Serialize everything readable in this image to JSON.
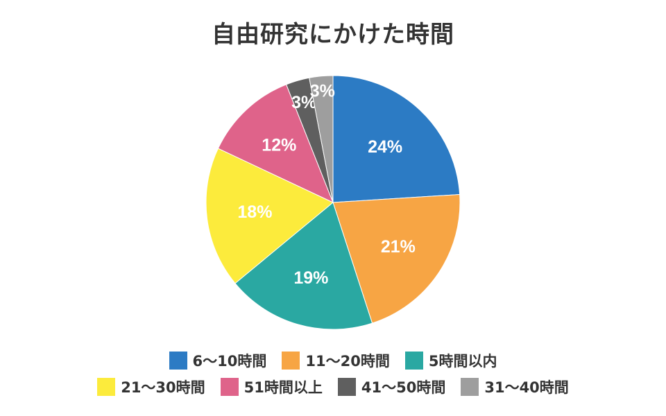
{
  "chart_data": {
    "type": "pie",
    "title": "自由研究にかけた時間",
    "slices": [
      {
        "label": "6〜10時間",
        "value": 24,
        "display": "24%",
        "color": "#2C7BC4"
      },
      {
        "label": "11〜20時間",
        "value": 21,
        "display": "21%",
        "color": "#F7A544"
      },
      {
        "label": "5時間以内",
        "value": 19,
        "display": "19%",
        "color": "#2AA8A2"
      },
      {
        "label": "21〜30時間",
        "value": 18,
        "display": "18%",
        "color": "#FCEB3C"
      },
      {
        "label": "51時間以上",
        "value": 12,
        "display": "12%",
        "color": "#DF638A"
      },
      {
        "label": "41〜50時間",
        "value": 3,
        "display": "3%",
        "color": "#5F5F5F"
      },
      {
        "label": "31〜40時間",
        "value": 3,
        "display": "3%",
        "color": "#9E9E9E"
      }
    ],
    "legend_position": "bottom"
  }
}
